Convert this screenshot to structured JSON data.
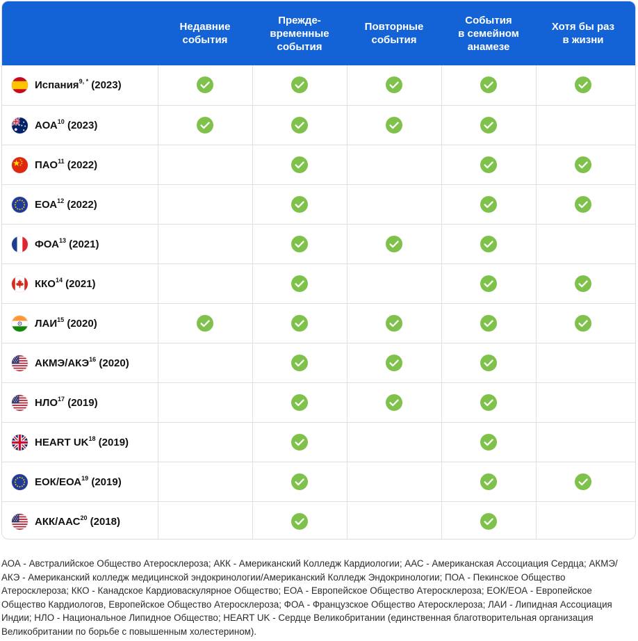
{
  "header": {
    "columns": [
      [
        "Недавние",
        "события"
      ],
      [
        "Прежде-",
        "временные",
        "события"
      ],
      [
        "Повторные",
        "события"
      ],
      [
        "События",
        "в семейном",
        "анамезе"
      ],
      [
        "Хотя бы раз",
        "в жизни"
      ]
    ]
  },
  "rows": [
    {
      "name": "Испания",
      "sup": "9, *",
      "year": " (2023)",
      "flag": "spain-flag-icon",
      "checks": [
        true,
        true,
        true,
        true,
        true
      ]
    },
    {
      "name": "АОА",
      "sup": "10",
      "year": " (2023)",
      "flag": "australia-flag-icon",
      "checks": [
        true,
        true,
        true,
        true,
        false
      ]
    },
    {
      "name": "ПАО",
      "sup": "11",
      "year": " (2022)",
      "flag": "china-flag-icon",
      "checks": [
        false,
        true,
        false,
        true,
        true
      ]
    },
    {
      "name": "ЕОА",
      "sup": "12",
      "year": " (2022)",
      "flag": "eu-flag-icon",
      "checks": [
        false,
        true,
        false,
        true,
        true
      ]
    },
    {
      "name": "ФОА",
      "sup": "13",
      "year": " (2021)",
      "flag": "france-flag-icon",
      "checks": [
        false,
        true,
        true,
        true,
        false
      ]
    },
    {
      "name": "ККО",
      "sup": "14",
      "year": " (2021)",
      "flag": "canada-flag-icon",
      "checks": [
        false,
        true,
        false,
        true,
        true
      ]
    },
    {
      "name": "ЛАИ",
      "sup": "15",
      "year": " (2020)",
      "flag": "india-flag-icon",
      "checks": [
        true,
        true,
        true,
        true,
        true
      ]
    },
    {
      "name": "АКМЭ/АКЭ",
      "sup": "16",
      "year": " (2020)",
      "flag": "usa-flag-icon",
      "checks": [
        false,
        true,
        true,
        true,
        false
      ]
    },
    {
      "name": "НЛО",
      "sup": "17",
      "year": " (2019)",
      "flag": "usa-flag-icon",
      "checks": [
        false,
        true,
        true,
        true,
        false
      ]
    },
    {
      "name": "HEART UK",
      "sup": "18",
      "year": " (2019)",
      "flag": "uk-flag-icon",
      "checks": [
        false,
        true,
        false,
        true,
        false
      ]
    },
    {
      "name": "ЕОК/ЕОА",
      "sup": "19",
      "year": " (2019)",
      "flag": "eu-flag-icon",
      "checks": [
        false,
        true,
        false,
        true,
        true
      ]
    },
    {
      "name": "АКК/ААС",
      "sup": "20",
      "year": " (2018)",
      "flag": "usa-flag-icon",
      "checks": [
        false,
        true,
        false,
        true,
        false
      ]
    }
  ],
  "colors": {
    "header_bg": "#1463d6",
    "check": "#7fc24b",
    "border": "#dcdfe4"
  },
  "footnote": "АОА - Австралийское Общество Атеросклероза; АКК - Американский Колледж Кардиологии; ААС - Американская Ассоциация Сердца; АКМЭ/АКЭ - Американский колледж медицинской эндокринологии/Американский Колледж Эндокринологии; ПОА - Пекинское Общество Атеросклероза; ККО - Канадское Кардиоваскулярное Общество; ЕОА - Европейское Общество Атеросклероза; ЕОК/ЕОА - Европейское Общество Кардиологов, Европейское Общество Атеросклероза; ФОА - Французское Общество Атеросклероза; ЛАИ - Липидная Ассоциация Индии; НЛО - Национальное Липидное Общество; HEART UK - Сердце Великобритании (единственная благотворительная организация Великобритании по борьбе с повышенным холестерином)."
}
